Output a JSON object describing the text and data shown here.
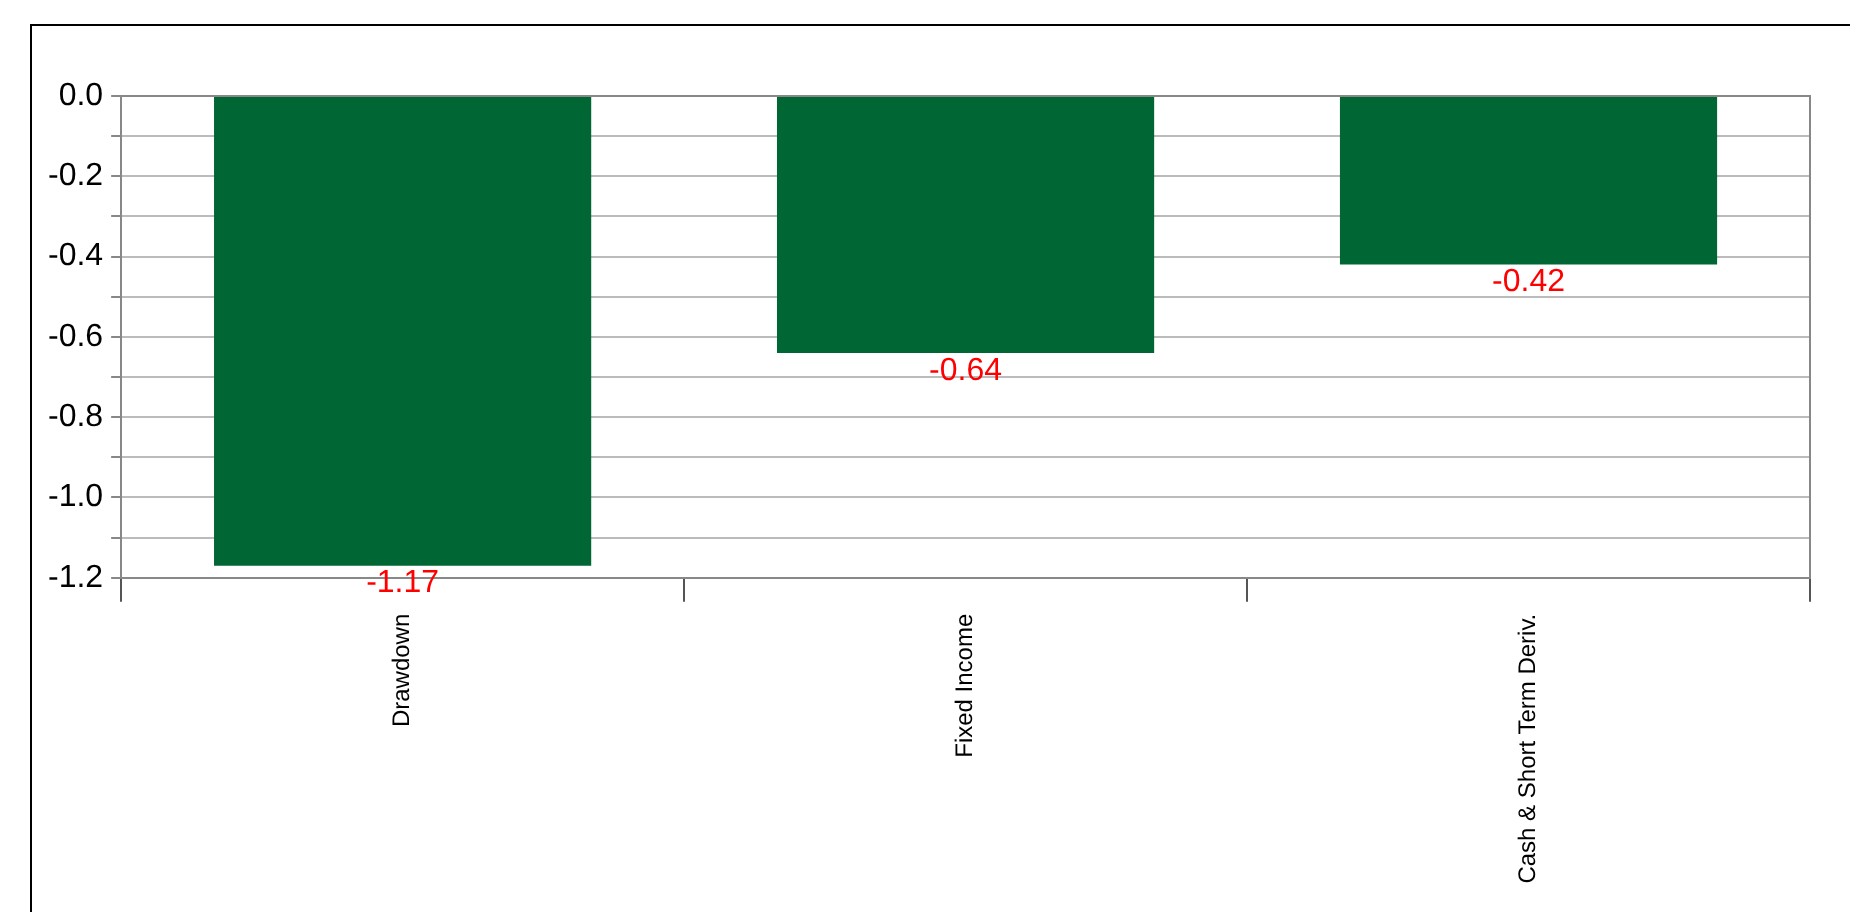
{
  "chart_data": {
    "type": "bar",
    "categories": [
      "Drawdown",
      "Fixed Income",
      "Cash & Short Term Deriv."
    ],
    "values": [
      -1.17,
      -0.64,
      -0.42
    ],
    "color": "#006633",
    "ylim": [
      -1.2,
      0
    ],
    "yticks": [
      {
        "value": -1.2,
        "label": "-1.2"
      },
      {
        "value": -1.1,
        "label": null
      },
      {
        "value": -1.0,
        "label": "-1.0"
      },
      {
        "value": -0.9,
        "label": null
      },
      {
        "value": -0.8,
        "label": "-0.8"
      },
      {
        "value": -0.7,
        "label": null
      },
      {
        "value": -0.6,
        "label": "-0.6"
      },
      {
        "value": -0.5,
        "label": null
      },
      {
        "value": -0.4,
        "label": "-0.4"
      },
      {
        "value": -0.3,
        "label": null
      },
      {
        "value": -0.2,
        "label": "-0.2"
      },
      {
        "value": -0.1,
        "label": null
      },
      {
        "value": 0,
        "label": "0.0"
      }
    ],
    "grid": "y",
    "data_labels": true
  }
}
